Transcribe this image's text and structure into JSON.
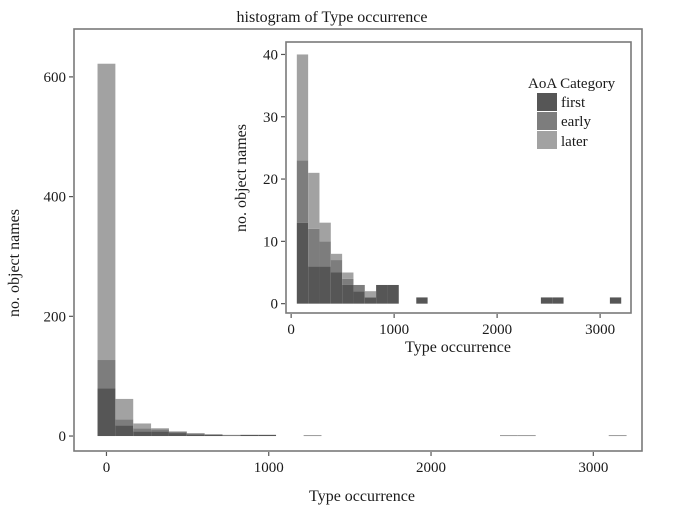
{
  "title": "histogram of Type occurrence",
  "chart_data": [
    {
      "id": "main",
      "type": "bar",
      "subtype": "stacked-histogram",
      "title": "histogram of Type occurrence",
      "xlabel": "Type occurrence",
      "ylabel": "no. object names",
      "xlim": [
        -200,
        3300
      ],
      "ylim": [
        -25,
        680
      ],
      "xticks": [
        0,
        1000,
        2000,
        3000
      ],
      "yticks": [
        0,
        200,
        400,
        600
      ],
      "grid": false,
      "bin_width": 110,
      "bins": [
        {
          "x0": -55,
          "first": 80,
          "early": 47,
          "later": 495
        },
        {
          "x0": 55,
          "first": 18,
          "early": 10,
          "later": 34
        },
        {
          "x0": 165,
          "first": 8,
          "early": 5,
          "later": 8
        },
        {
          "x0": 275,
          "first": 8,
          "early": 3,
          "later": 2
        },
        {
          "x0": 385,
          "first": 5,
          "early": 2,
          "later": 1
        },
        {
          "x0": 495,
          "first": 3,
          "early": 1,
          "later": 1
        },
        {
          "x0": 605,
          "first": 2,
          "early": 1,
          "later": 0
        },
        {
          "x0": 715,
          "first": 1,
          "early": 0,
          "later": 1
        },
        {
          "x0": 825,
          "first": 2,
          "early": 0,
          "later": 0
        },
        {
          "x0": 935,
          "first": 2,
          "early": 0,
          "later": 0
        },
        {
          "x0": 1215,
          "first": 1,
          "early": 0,
          "later": 0
        },
        {
          "x0": 2425,
          "first": 1,
          "early": 0,
          "later": 0
        },
        {
          "x0": 2535,
          "first": 1,
          "early": 0,
          "later": 0
        },
        {
          "x0": 3095,
          "first": 1,
          "early": 0,
          "later": 0
        }
      ]
    },
    {
      "id": "inset",
      "type": "bar",
      "subtype": "stacked-histogram",
      "xlabel": "Type occurrence",
      "ylabel": "no. object names",
      "xlim": [
        -50,
        3300
      ],
      "ylim": [
        -1.5,
        42
      ],
      "xticks": [
        0,
        1000,
        2000,
        3000
      ],
      "yticks": [
        0,
        10,
        20,
        30,
        40
      ],
      "grid": false,
      "bin_width": 110,
      "legend": {
        "title": "AoA Category",
        "placement": "top-right",
        "items": [
          {
            "key": "first",
            "label": "first"
          },
          {
            "key": "early",
            "label": "early"
          },
          {
            "key": "later",
            "label": "later"
          }
        ]
      },
      "bins": [
        {
          "x0": 55,
          "first": 13,
          "early": 10,
          "later": 17
        },
        {
          "x0": 165,
          "first": 6,
          "early": 6,
          "later": 9
        },
        {
          "x0": 275,
          "first": 6,
          "early": 4,
          "later": 3
        },
        {
          "x0": 385,
          "first": 5,
          "early": 2,
          "later": 1
        },
        {
          "x0": 495,
          "first": 3,
          "early": 1,
          "later": 1
        },
        {
          "x0": 605,
          "first": 2,
          "early": 1,
          "later": 0
        },
        {
          "x0": 715,
          "first": 1,
          "early": 0,
          "later": 1
        },
        {
          "x0": 825,
          "first": 3,
          "early": 0,
          "later": 0
        },
        {
          "x0": 935,
          "first": 3,
          "early": 0,
          "later": 0
        },
        {
          "x0": 1215,
          "first": 1,
          "early": 0,
          "later": 0
        },
        {
          "x0": 2425,
          "first": 1,
          "early": 0,
          "later": 0
        },
        {
          "x0": 2535,
          "first": 1,
          "early": 0,
          "later": 0
        },
        {
          "x0": 3095,
          "first": 1,
          "early": 0,
          "later": 0
        }
      ]
    }
  ],
  "colors": {
    "first": "#565656",
    "early": "#7d7d7d",
    "later": "#a2a2a2"
  }
}
